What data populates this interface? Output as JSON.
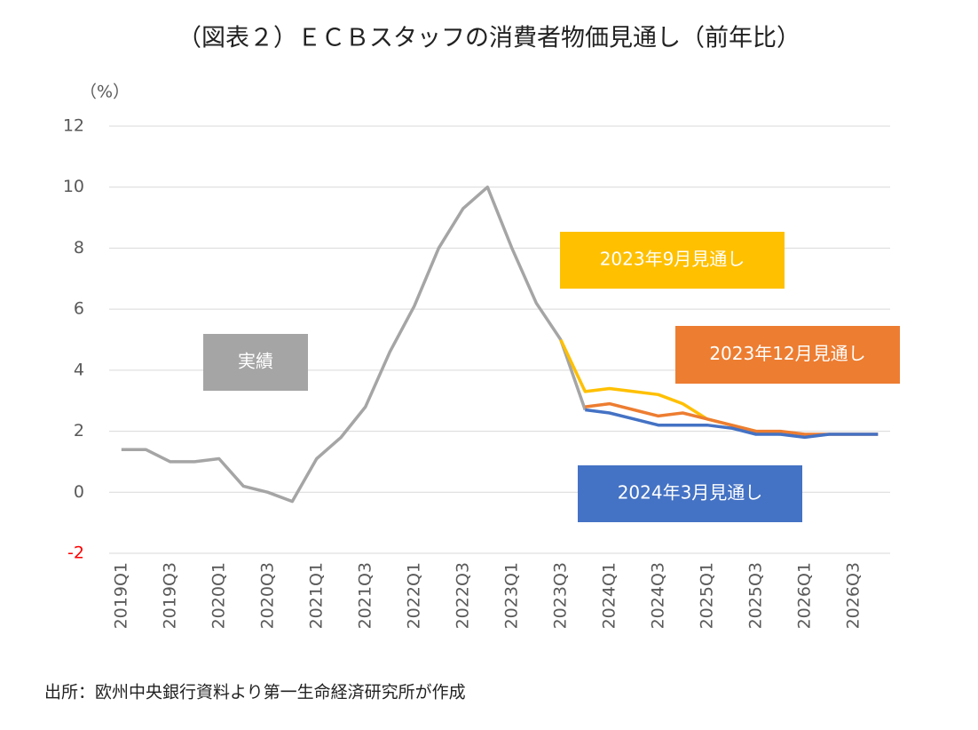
{
  "chart_data": {
    "type": "line",
    "title": "（図表２）ＥＣＢスタッフの消費者物価見通し（前年比）",
    "y_axis_label": "（%）",
    "source": "出所：欧州中央銀行資料より第一生命経済研究所が作成",
    "categories": [
      "2019Q1",
      null,
      "2019Q3",
      null,
      "2020Q1",
      null,
      "2020Q3",
      null,
      "2021Q1",
      null,
      "2021Q3",
      null,
      "2022Q1",
      null,
      "2022Q3",
      null,
      "2023Q1",
      null,
      "2023Q3",
      null,
      "2024Q1",
      null,
      "2024Q3",
      null,
      "2025Q1",
      null,
      "2025Q3",
      null,
      "2026Q1",
      null,
      "2026Q3",
      null
    ],
    "series": [
      {
        "name": "実績",
        "color": "#a5a5a5",
        "values": [
          1.4,
          1.4,
          1.0,
          1.0,
          1.1,
          0.2,
          0.0,
          -0.3,
          1.1,
          1.8,
          2.8,
          4.6,
          6.1,
          8.0,
          9.3,
          10.0,
          8.0,
          6.2,
          5.0,
          2.7,
          null,
          null,
          null,
          null,
          null,
          null,
          null,
          null,
          null,
          null,
          null,
          null
        ]
      },
      {
        "name": "2023年9月見通し",
        "color": "#ffc000",
        "values": [
          null,
          null,
          null,
          null,
          null,
          null,
          null,
          null,
          null,
          null,
          null,
          null,
          null,
          null,
          null,
          null,
          null,
          null,
          5.0,
          3.3,
          3.4,
          3.3,
          3.2,
          2.9,
          2.4,
          2.2,
          2.0,
          1.9,
          null,
          null,
          null,
          null
        ]
      },
      {
        "name": "2023年12月見通し",
        "color": "#ed7d31",
        "values": [
          null,
          null,
          null,
          null,
          null,
          null,
          null,
          null,
          null,
          null,
          null,
          null,
          null,
          null,
          null,
          null,
          null,
          null,
          null,
          2.8,
          2.9,
          2.7,
          2.5,
          2.6,
          2.4,
          2.2,
          2.0,
          2.0,
          1.9,
          1.9,
          1.9,
          1.9
        ]
      },
      {
        "name": "2024年3月見通し",
        "color": "#4472c4",
        "values": [
          null,
          null,
          null,
          null,
          null,
          null,
          null,
          null,
          null,
          null,
          null,
          null,
          null,
          null,
          null,
          null,
          null,
          null,
          null,
          2.7,
          2.6,
          2.4,
          2.2,
          2.2,
          2.2,
          2.1,
          1.9,
          1.9,
          1.8,
          1.9,
          1.9,
          1.9
        ]
      }
    ],
    "ylim": [
      -2,
      12
    ],
    "yticks": [
      -2,
      0,
      2,
      4,
      6,
      8,
      10,
      12
    ],
    "negative_tick_color": "#ff0000",
    "grid": true
  }
}
